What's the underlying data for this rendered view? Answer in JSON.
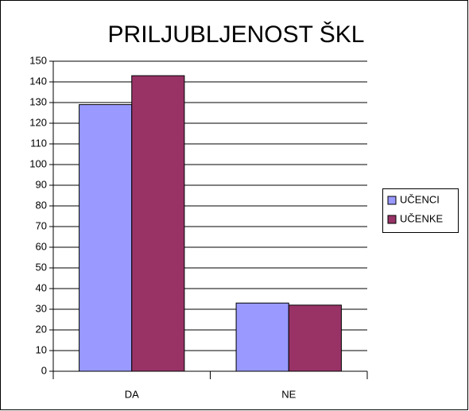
{
  "chart_data": {
    "type": "bar",
    "title": "PRILJUBLJENOST ŠKL",
    "categories": [
      "DA",
      "NE"
    ],
    "series": [
      {
        "name": "UČENCI",
        "color": "#9999ff",
        "values": [
          129,
          33
        ]
      },
      {
        "name": "UČENKE",
        "color": "#993366",
        "values": [
          143,
          32
        ]
      }
    ],
    "ylim": [
      0,
      150
    ],
    "yticks": [
      0,
      10,
      20,
      30,
      40,
      50,
      60,
      70,
      80,
      90,
      100,
      110,
      120,
      130,
      140,
      150
    ],
    "grid": true,
    "legend": "right"
  }
}
